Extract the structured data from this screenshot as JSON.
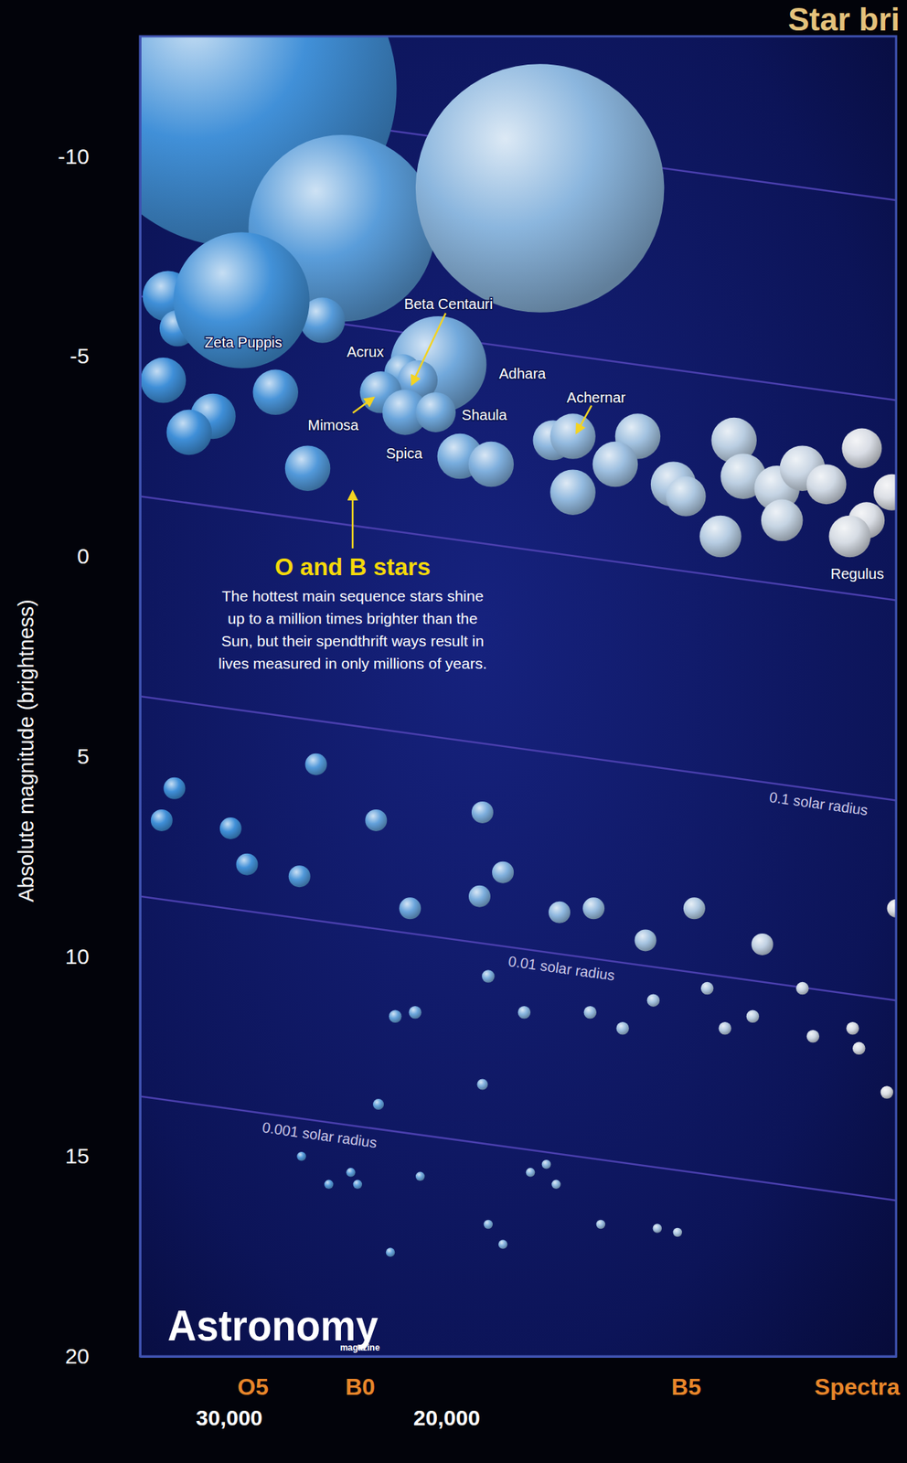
{
  "chart_data": {
    "type": "scatter",
    "title": "Star bri",
    "y_label": "Absolute magnitude (brightness)",
    "x_label": "Spectra",
    "log": "x",
    "xlim": [
      35400,
      8650
    ],
    "xticks": [
      {
        "value": 30000,
        "label": "30,000"
      },
      {
        "value": 20000,
        "label": "20,000"
      }
    ],
    "x2ticks": [
      {
        "value": 28700,
        "label": "O5"
      },
      {
        "value": 23500,
        "label": "B0"
      },
      {
        "value": 12800,
        "label": "B5"
      }
    ],
    "ylim": [
      20,
      -13
    ],
    "yticks": [
      -10,
      -5,
      0,
      5,
      10,
      15,
      20
    ],
    "series": [
      {
        "x": [
          29500,
          24300,
          16800,
          33600,
          33000,
          25200,
          29300,
          33900,
          30900,
          32300,
          27500,
          20300,
          21700,
          21100,
          22600,
          21600,
          20400,
          25900,
          19500,
          18400,
          16400,
          15800,
          14000,
          14600,
          15800,
          13100,
          12800,
          11700,
          11500,
          10800,
          10300,
          9850,
          9220,
          8720,
          10700,
          12000,
          9140,
          9430,
          33200,
          34000,
          25500,
          29900,
          29000,
          26300,
          22800,
          18700,
          18000,
          18800,
          21400,
          16200,
          15200,
          12600,
          13800,
          11100,
          8650,
          18500,
          22000,
          21200,
          17300,
          15300,
          14400,
          13600,
          12300,
          11900,
          11300,
          10300,
          10100,
          9380,
          9270,
          8800,
          18700,
          22700,
          26200,
          24900,
          23900,
          23600,
          21000,
          17100,
          16600,
          16300,
          18500,
          18000,
          15000,
          13500,
          13000,
          22200
        ],
        "values": [
          -11.7,
          -8.2,
          -9.2,
          -6.5,
          -5.7,
          -5.9,
          -6.4,
          -4.4,
          -3.5,
          -3.1,
          -4.1,
          -4.8,
          -4.6,
          -4.4,
          -4.1,
          -3.6,
          -3.6,
          -2.2,
          -2.5,
          -2.3,
          -2.9,
          -3,
          -3,
          -2.3,
          -1.6,
          -1.8,
          -1.5,
          -2.9,
          -2,
          -1.7,
          -2.2,
          -1.8,
          -2.7,
          -1.6,
          -0.9,
          -0.5,
          -0.9,
          -0.5,
          5.8,
          6.6,
          5.2,
          6.8,
          7.7,
          8,
          6.6,
          6.4,
          7.9,
          8.5,
          8.8,
          8.9,
          8.8,
          8.8,
          9.6,
          9.7,
          8.8,
          10.5,
          11.5,
          11.4,
          11.4,
          11.4,
          11.8,
          11.1,
          10.8,
          11.8,
          11.5,
          10.8,
          12,
          11.8,
          12.3,
          13.4,
          13.2,
          13.7,
          15,
          15.7,
          15.4,
          15.7,
          15.5,
          15.4,
          15.2,
          15.7,
          16.7,
          17.2,
          16.7,
          16.8,
          16.9,
          17.4
        ],
        "sizes": [
          175,
          103,
          137,
          28,
          20,
          25,
          75,
          25,
          25,
          25,
          25,
          53,
          20,
          22,
          23,
          25,
          22,
          25,
          25,
          25,
          22,
          25,
          25,
          25,
          25,
          25,
          22,
          25,
          25,
          25,
          25,
          22,
          22,
          20,
          23,
          23,
          20,
          23,
          12,
          12,
          12,
          12,
          12,
          12,
          12,
          12,
          12,
          12,
          12,
          12,
          12,
          12,
          12,
          12,
          10,
          7,
          7,
          7,
          7,
          7,
          7,
          7,
          7,
          7,
          7,
          7,
          7,
          7,
          7,
          7,
          6,
          6,
          5,
          5,
          5,
          5,
          5,
          5,
          5,
          5,
          5,
          5,
          5,
          5,
          5,
          5
        ],
        "names": [
          null,
          null,
          null,
          null,
          null,
          null,
          "Zeta Puppis",
          null,
          null,
          null,
          null,
          "Adhara",
          "Acrux",
          "Beta Centauri",
          "Mimosa",
          "Spica",
          "Shaula",
          null,
          null,
          null,
          null,
          "Achernar",
          null,
          null,
          null,
          null,
          null,
          null,
          null,
          null,
          null,
          null,
          null,
          null,
          null,
          null,
          null,
          "Regulus",
          null,
          null,
          null,
          null,
          null,
          null,
          null,
          null,
          null,
          null,
          null,
          null,
          null,
          null,
          null,
          null,
          null,
          null,
          null,
          null,
          null,
          null,
          null,
          null,
          null,
          null,
          null,
          null,
          null,
          null,
          null,
          null,
          null,
          null,
          null,
          null,
          null,
          null,
          null,
          null,
          null,
          null,
          null,
          null,
          null,
          null,
          null,
          null
        ]
      }
    ],
    "radius_lines": [
      {
        "label": null,
        "x": [
          35400,
          8650
        ],
        "values": [
          -11.5,
          -8.9
        ]
      },
      {
        "label": null,
        "x": [
          35400,
          8650
        ],
        "values": [
          -6.5,
          -3.9
        ]
      },
      {
        "label": null,
        "x": [
          35400,
          8650
        ],
        "values": [
          -1.5,
          1.1
        ]
      },
      {
        "label": "0.1 solar radius",
        "x": [
          35400,
          8650
        ],
        "values": [
          3.5,
          6.1
        ]
      },
      {
        "label": "0.01 solar radius",
        "x": [
          35400,
          8650
        ],
        "values": [
          8.5,
          11.1
        ]
      },
      {
        "label": "0.001 solar radius",
        "x": [
          35400,
          8650
        ],
        "values": [
          13.5,
          16.1
        ]
      }
    ],
    "annotation": {
      "title": "O and B stars",
      "lines": [
        "The hottest main sequence stars shine",
        "up to a million times brighter than the",
        "Sun, but their spendthrift ways result in",
        "lives measured in only millions of years."
      ]
    },
    "logo": {
      "text": "Astronomy",
      "subtext": "magazine"
    }
  }
}
